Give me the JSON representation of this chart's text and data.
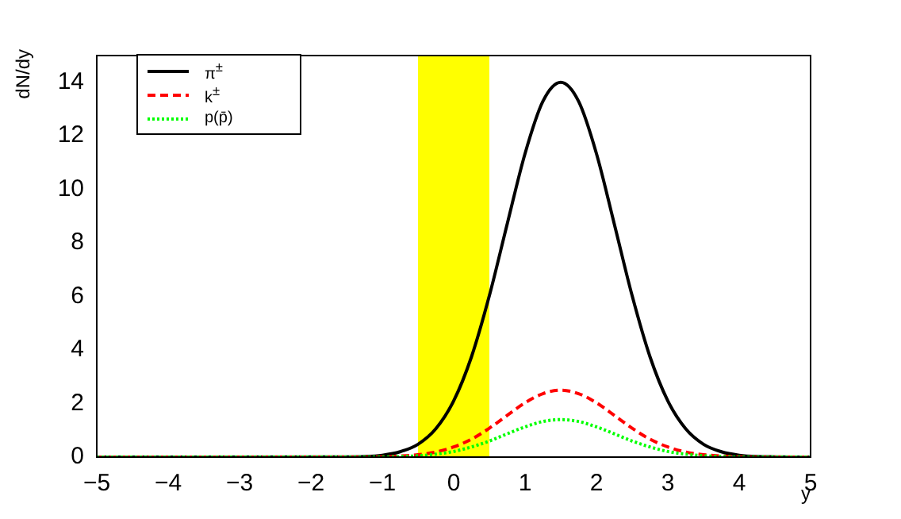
{
  "chart_data": {
    "type": "line",
    "xlabel": "y",
    "ylabel": "dN/dy",
    "x": [
      -5,
      -1.5,
      -1.25,
      -1,
      -0.75,
      -0.5,
      -0.25,
      0,
      0.25,
      0.5,
      0.75,
      1,
      1.25,
      1.5,
      1.75,
      2,
      2.25,
      2.5,
      2.75,
      3,
      3.25,
      3.5,
      3.75,
      4,
      4.25,
      4.5,
      5
    ],
    "series": [
      {
        "name": "π$^{±}$",
        "color": "#000000",
        "line_style": "solid",
        "values": [
          0,
          0.01,
          0.02,
          0.07,
          0.2,
          0.48,
          1.06,
          2.1,
          3.75,
          6.03,
          8.71,
          11.34,
          13.29,
          14,
          13.29,
          11.34,
          8.71,
          6.03,
          3.75,
          2.1,
          1.06,
          0.48,
          0.2,
          0.07,
          0.02,
          0.01,
          0
        ]
      },
      {
        "name": "k$^{±}$",
        "color": "#ff0000",
        "line_style": "dashed",
        "values": [
          0,
          0,
          0,
          0.01,
          0.04,
          0.09,
          0.19,
          0.38,
          0.67,
          1.08,
          1.56,
          2.03,
          2.37,
          2.5,
          2.37,
          2.03,
          1.56,
          1.08,
          0.67,
          0.38,
          0.19,
          0.09,
          0.04,
          0.01,
          0,
          0,
          0
        ]
      },
      {
        "name": "p(p̄)",
        "color": "#00ff00",
        "line_style": "dotted",
        "values": [
          0,
          0,
          0,
          0,
          0.02,
          0.05,
          0.11,
          0.21,
          0.38,
          0.6,
          0.87,
          1.13,
          1.33,
          1.4,
          1.33,
          1.13,
          0.87,
          0.6,
          0.38,
          0.21,
          0.11,
          0.05,
          0.02,
          0,
          0,
          0,
          0
        ]
      }
    ],
    "bands": [
      {
        "axis": "x",
        "from": -0.5,
        "to": 0.5,
        "color": "#ffff00"
      }
    ],
    "xlim": [
      -5,
      5
    ],
    "xticks": [
      -5,
      -4,
      -3,
      -2,
      -1,
      0,
      1,
      2,
      3,
      4,
      5
    ],
    "ylim": [
      0,
      15
    ],
    "yticks": [
      0,
      2,
      4,
      6,
      8,
      10,
      12,
      14
    ],
    "grid": false,
    "legend": "top left",
    "marker": "none"
  }
}
